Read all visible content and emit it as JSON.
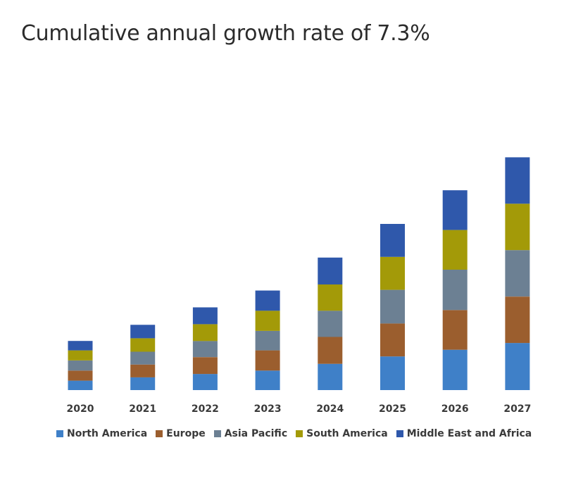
{
  "title": "Cumulative annual growth rate of 7.3%",
  "chart_data": {
    "type": "bar",
    "stacked": true,
    "categories": [
      "2020",
      "2021",
      "2022",
      "2023",
      "2024",
      "2025",
      "2026",
      "2027"
    ],
    "ylim": [
      0,
      360
    ],
    "grid": false,
    "legend_position": "bottom",
    "series": [
      {
        "name": "North America",
        "color": "#3f80c8",
        "values": [
          14,
          19,
          24,
          29,
          39,
          50,
          60,
          70
        ]
      },
      {
        "name": "Europe",
        "color": "#9b5e2e",
        "values": [
          15,
          19,
          25,
          30,
          40,
          49,
          59,
          69
        ]
      },
      {
        "name": "Asia Pacific",
        "color": "#6c8093",
        "values": [
          15,
          19,
          24,
          29,
          39,
          50,
          60,
          69
        ]
      },
      {
        "name": "South America",
        "color": "#a39a08",
        "values": [
          15,
          20,
          25,
          30,
          39,
          49,
          59,
          69
        ]
      },
      {
        "name": "Middle East and Africa",
        "color": "#2f58ab",
        "values": [
          14,
          20,
          25,
          30,
          40,
          49,
          59,
          69
        ]
      }
    ]
  }
}
